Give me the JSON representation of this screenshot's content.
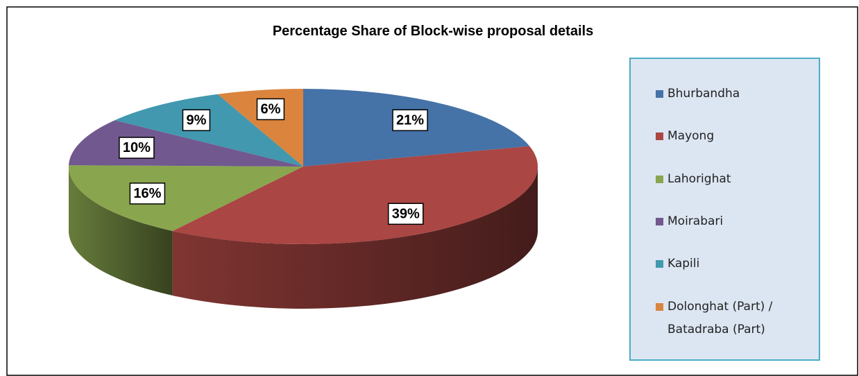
{
  "chart_data": {
    "type": "pie3d",
    "title": "Percentage Share of Block-wise proposal details",
    "categories": [
      "Bhurbandha",
      "Mayong",
      "Lahorighat",
      "Moirabari",
      "Kapili",
      "Dolonghat (Part) / Batadraba (Part)"
    ],
    "values": [
      21,
      39,
      16,
      10,
      9,
      6
    ],
    "value_labels": [
      "21%",
      "39%",
      "16%",
      "10%",
      "9%",
      "6%"
    ],
    "colors": [
      "#4572a7",
      "#aa4643",
      "#89a54e",
      "#71588f",
      "#4198af",
      "#db843d"
    ],
    "legend": "right"
  }
}
